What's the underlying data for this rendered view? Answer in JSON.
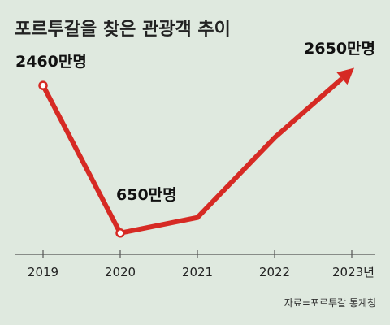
{
  "chart_data": {
    "type": "line",
    "title": "포르투갈을 찾은 관광객 추이",
    "x": [
      "2019",
      "2020",
      "2021",
      "2022",
      "2023년"
    ],
    "values": [
      2460,
      650,
      840,
      1820,
      2650
    ],
    "data_labels": [
      "2460만명",
      "650만명",
      null,
      null,
      "2650만명"
    ],
    "unit": "만명",
    "ylim": [
      0,
      2900
    ],
    "grid": false,
    "line_color": "#d62a24",
    "end_marker": "arrow",
    "source": "자료=포르투갈 통계청"
  }
}
